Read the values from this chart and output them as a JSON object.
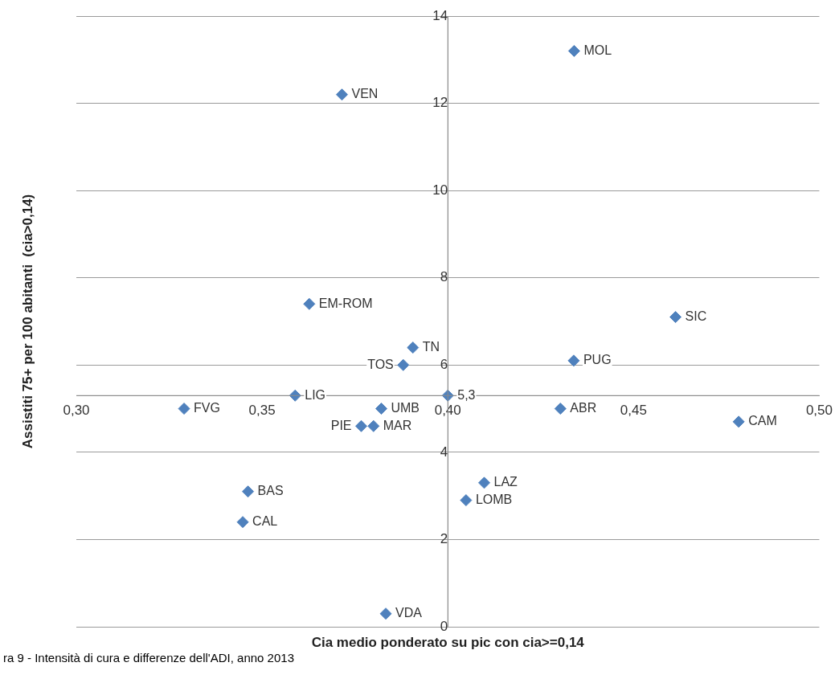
{
  "chart_data": {
    "type": "scatter",
    "xlabel": "Cia medio ponderato su pic con cia>=0,14",
    "ylabel": "Assistiti 75+ per 100 abitanti  (cia>0,14)",
    "series": [
      {
        "color": "#4f81bd",
        "x": [
          0.434,
          0.3715,
          0.3627,
          0.4613,
          0.3906,
          0.388,
          0.4339,
          0.3589,
          0.4,
          0.329,
          0.3821,
          0.4303,
          0.4783,
          0.3767,
          0.38,
          0.3462,
          0.3448,
          0.4098,
          0.4049,
          0.3833
        ],
        "values": [
          13.2,
          12.2,
          7.4,
          7.1,
          6.4,
          6.0,
          6.1,
          5.3,
          5.3,
          5.0,
          5.0,
          5.0,
          4.7,
          4.6,
          4.6,
          3.1,
          2.4,
          3.3,
          2.9,
          0.3
        ]
      }
    ],
    "marker": "diamond",
    "grid": "y",
    "legend": false,
    "xlim": [
      0.3,
      0.5
    ],
    "xticks": [
      {
        "value": 0.3,
        "label": "0,30"
      },
      {
        "value": 0.35,
        "label": "0,35"
      },
      {
        "value": 0.4,
        "label": "0,40"
      },
      {
        "value": 0.45,
        "label": "0,45"
      },
      {
        "value": 0.5,
        "label": "0,50"
      }
    ],
    "ylim": [
      0,
      14
    ],
    "yticks": [
      0,
      2,
      4,
      6,
      8,
      10,
      12,
      14
    ],
    "ref_lines": [
      {
        "axis": "x",
        "value": 0.4
      },
      {
        "axis": "y",
        "value": 5.3
      }
    ],
    "annotations": [
      {
        "text": "MOL",
        "x": 0.434,
        "y": 13.2
      },
      {
        "text": "VEN",
        "x": 0.3715,
        "y": 12.2
      },
      {
        "text": "EM-ROM",
        "x": 0.3627,
        "y": 7.4
      },
      {
        "text": "SIC",
        "x": 0.4613,
        "y": 7.1
      },
      {
        "text": "TN",
        "x": 0.3906,
        "y": 6.4
      },
      {
        "text": "TOS",
        "x": 0.388,
        "y": 6.0
      },
      {
        "text": "PUG",
        "x": 0.4339,
        "y": 6.1
      },
      {
        "text": "LIG",
        "x": 0.3589,
        "y": 5.3
      },
      {
        "text": "5,3",
        "x": 0.4,
        "y": 5.3
      },
      {
        "text": "FVG",
        "x": 0.329,
        "y": 5.0
      },
      {
        "text": "UMB",
        "x": 0.3821,
        "y": 5.0
      },
      {
        "text": "ABR",
        "x": 0.4303,
        "y": 5.0
      },
      {
        "text": "CAM",
        "x": 0.4783,
        "y": 4.7
      },
      {
        "text": "PIE",
        "x": 0.3767,
        "y": 4.6
      },
      {
        "text": "MAR",
        "x": 0.38,
        "y": 4.6
      },
      {
        "text": "BAS",
        "x": 0.3462,
        "y": 3.1
      },
      {
        "text": "CAL",
        "x": 0.3448,
        "y": 2.4
      },
      {
        "text": "LAZ",
        "x": 0.4098,
        "y": 3.3
      },
      {
        "text": "LOMB",
        "x": 0.4049,
        "y": 2.9
      },
      {
        "text": "VDA",
        "x": 0.3833,
        "y": 0.3
      },
      "ra 9 - Intensità di cura e differenze dell'ADI, anno 2013"
    ]
  }
}
